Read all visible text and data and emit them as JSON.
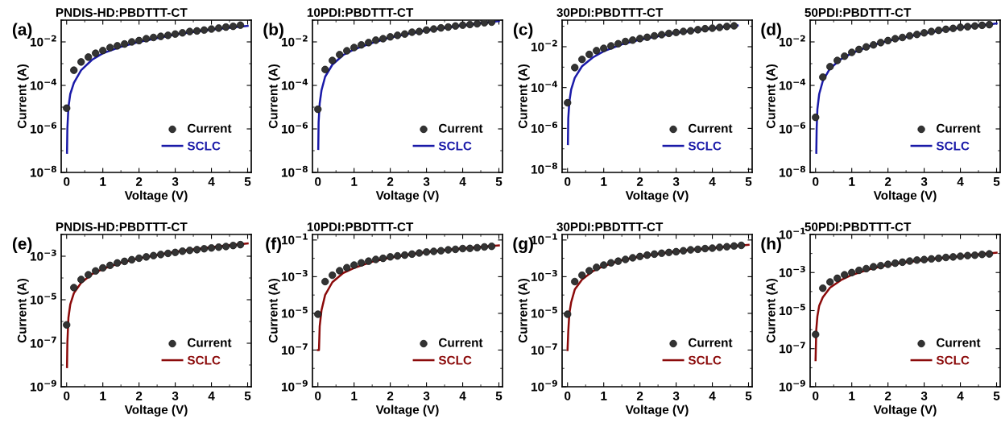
{
  "chart_data": [
    {
      "type": "scatter",
      "title": "PNDIS-HD:PBDTTT-CT",
      "annotations": [
        "(a)"
      ],
      "xlabel": "Voltage (V)",
      "ylabel": "Current (A)",
      "log": "y",
      "legend": "bottom right",
      "xlim": [
        -0.15,
        5.1
      ],
      "xticks": [
        0,
        1,
        2,
        3,
        4,
        5
      ],
      "ylim": [
        1e-08,
        0.1
      ],
      "yticks": [
        {
          "value": 1e-08,
          "label": "10$^{−8}$"
        },
        {
          "value": 1e-06,
          "label": "10$^{−6}$"
        },
        {
          "value": 0.0001,
          "label": "10$^{−4}$"
        },
        {
          "value": 0.01,
          "label": "10$^{−2}$"
        }
      ],
      "series": [
        {
          "name": "Current",
          "marker": "circle",
          "color": "#333333",
          "x": [
            0,
            0.2,
            0.4,
            0.6,
            0.8,
            1.0,
            1.2,
            1.4,
            1.6,
            1.8,
            2.0,
            2.2,
            2.4,
            2.6,
            2.8,
            3.0,
            3.2,
            3.4,
            3.6,
            3.8,
            4.0,
            4.2,
            4.4,
            4.6,
            4.8
          ],
          "values": [
            9e-06,
            0.0005,
            0.0012,
            0.002,
            0.003,
            0.004,
            0.0055,
            0.0066,
            0.008,
            0.01,
            0.0115,
            0.014,
            0.016,
            0.018,
            0.02,
            0.023,
            0.026,
            0.03,
            0.032,
            0.035,
            0.039,
            0.043,
            0.048,
            0.052,
            0.059
          ]
        },
        {
          "name": "SCLC",
          "type": "line",
          "color": "#1a1aa8",
          "x": [
            0.01,
            0.02,
            0.05,
            0.1,
            0.2,
            0.4,
            0.7,
            1.0,
            1.5,
            2.0,
            3.0,
            4.0,
            5.0
          ],
          "values": [
            8e-08,
            1e-06,
            1e-05,
            4e-05,
            0.00013,
            0.0005,
            0.0015,
            0.003,
            0.006,
            0.01,
            0.022,
            0.037,
            0.055
          ]
        }
      ]
    },
    {
      "type": "scatter",
      "title": "10PDI:PBDTTT-CT",
      "annotations": [
        "(b)"
      ],
      "xlabel": "Voltage (V)",
      "ylabel": "Current (A)",
      "log": "y",
      "legend": "bottom right",
      "xlim": [
        -0.15,
        5.1
      ],
      "xticks": [
        0,
        1,
        2,
        3,
        4,
        5
      ],
      "ylim": [
        1e-08,
        0.1
      ],
      "yticks": [
        {
          "value": 1e-08,
          "label": "10$^{−8}$"
        },
        {
          "value": 1e-06,
          "label": "10$^{−6}$"
        },
        {
          "value": 0.0001,
          "label": "10$^{−4}$"
        },
        {
          "value": 0.01,
          "label": "10$^{−2}$"
        }
      ],
      "series": [
        {
          "name": "Current",
          "marker": "circle",
          "color": "#333333",
          "x": [
            0,
            0.2,
            0.4,
            0.6,
            0.8,
            1.0,
            1.2,
            1.4,
            1.6,
            1.8,
            2.0,
            2.2,
            2.4,
            2.6,
            2.8,
            3.0,
            3.2,
            3.4,
            3.6,
            3.8,
            4.0,
            4.2,
            4.4,
            4.6,
            4.8
          ],
          "values": [
            8e-06,
            0.00054,
            0.0014,
            0.0026,
            0.0039,
            0.0055,
            0.0073,
            0.0093,
            0.012,
            0.014,
            0.017,
            0.02,
            0.023,
            0.028,
            0.03,
            0.035,
            0.039,
            0.044,
            0.048,
            0.054,
            0.059,
            0.063,
            0.068,
            0.076,
            0.081
          ]
        },
        {
          "name": "SCLC",
          "type": "line",
          "color": "#1a1aa8",
          "x": [
            0.01,
            0.02,
            0.05,
            0.1,
            0.2,
            0.4,
            0.7,
            1.0,
            1.5,
            2.0,
            3.0,
            4.0,
            5.0
          ],
          "values": [
            1.2e-07,
            2e-06,
            1.5e-05,
            6e-05,
            0.00025,
            0.0009,
            0.0025,
            0.0045,
            0.009,
            0.016,
            0.034,
            0.058,
            0.09
          ]
        }
      ]
    },
    {
      "type": "scatter",
      "title": "30PDI:PBDTTT-CT",
      "annotations": [
        "(c)"
      ],
      "xlabel": "Voltage (V)",
      "ylabel": "Current (A)",
      "log": "y",
      "legend": "bottom right",
      "xlim": [
        -0.15,
        5.1
      ],
      "xticks": [
        0,
        1,
        2,
        3,
        4,
        5
      ],
      "ylim": [
        7e-09,
        0.2
      ],
      "yticks": [
        {
          "value": 1e-08,
          "label": "10$^{−8}$"
        },
        {
          "value": 1e-06,
          "label": "10$^{−6}$"
        },
        {
          "value": 0.0001,
          "label": "10$^{−4}$"
        },
        {
          "value": 0.01,
          "label": "10$^{−2}$"
        }
      ],
      "series": [
        {
          "name": "Current",
          "marker": "circle",
          "color": "#333333",
          "x": [
            0,
            0.2,
            0.4,
            0.6,
            0.8,
            1.0,
            1.2,
            1.4,
            1.6,
            1.8,
            2.0,
            2.2,
            2.4,
            2.6,
            2.8,
            3.0,
            3.2,
            3.4,
            3.6,
            3.8,
            4.0,
            4.2,
            4.4,
            4.6
          ],
          "values": [
            1.8e-05,
            0.00095,
            0.0024,
            0.0042,
            0.0064,
            0.0083,
            0.011,
            0.014,
            0.018,
            0.021,
            0.025,
            0.029,
            0.034,
            0.039,
            0.045,
            0.05,
            0.056,
            0.06,
            0.068,
            0.076,
            0.081,
            0.088,
            0.098,
            0.105
          ]
        },
        {
          "name": "SCLC",
          "type": "line",
          "color": "#1a1aa8",
          "x": [
            0.01,
            0.02,
            0.05,
            0.1,
            0.2,
            0.4,
            0.7,
            1.0,
            1.5,
            2.0,
            3.0,
            4.0,
            4.7
          ],
          "values": [
            1.7e-07,
            3e-06,
            2e-05,
            8e-05,
            0.0003,
            0.0011,
            0.003,
            0.006,
            0.013,
            0.022,
            0.048,
            0.08,
            0.11
          ]
        }
      ]
    },
    {
      "type": "scatter",
      "title": "50PDI:PBDTTT-CT",
      "annotations": [
        "(d)"
      ],
      "xlabel": "Voltage (V)",
      "ylabel": "Current (A)",
      "log": "y",
      "legend": "bottom right",
      "xlim": [
        -0.15,
        5.1
      ],
      "xticks": [
        0,
        1,
        2,
        3,
        4,
        5
      ],
      "ylim": [
        1e-08,
        0.1
      ],
      "yticks": [
        {
          "value": 1e-08,
          "label": "10$^{−8}$"
        },
        {
          "value": 1e-06,
          "label": "10$^{−6}$"
        },
        {
          "value": 0.0001,
          "label": "10$^{−4}$"
        },
        {
          "value": 0.01,
          "label": "10$^{−2}$"
        }
      ],
      "series": [
        {
          "name": "Current",
          "marker": "circle",
          "color": "#333333",
          "x": [
            0,
            0.2,
            0.4,
            0.6,
            0.8,
            1.0,
            1.2,
            1.4,
            1.6,
            1.8,
            2.0,
            2.2,
            2.4,
            2.6,
            2.8,
            3.0,
            3.2,
            3.4,
            3.6,
            3.8,
            4.0,
            4.2,
            4.4,
            4.6,
            4.8
          ],
          "values": [
            3.4e-06,
            0.00024,
            0.00073,
            0.0014,
            0.0022,
            0.0033,
            0.0045,
            0.0059,
            0.0073,
            0.0093,
            0.0115,
            0.014,
            0.016,
            0.019,
            0.022,
            0.026,
            0.03,
            0.034,
            0.038,
            0.042,
            0.047,
            0.05,
            0.054,
            0.058,
            0.062
          ]
        },
        {
          "name": "SCLC",
          "type": "line",
          "color": "#1a1aa8",
          "x": [
            0.02,
            0.03,
            0.05,
            0.1,
            0.2,
            0.4,
            0.7,
            1.0,
            1.5,
            2.0,
            3.0,
            4.0,
            5.0
          ],
          "values": [
            8e-08,
            1e-06,
            8e-06,
            4e-05,
            0.00016,
            0.0006,
            0.0016,
            0.003,
            0.0065,
            0.011,
            0.025,
            0.045,
            0.07
          ]
        }
      ]
    },
    {
      "type": "scatter",
      "title": "PNDIS-HD:PBDTTT-CT",
      "annotations": [
        "(e)"
      ],
      "xlabel": "Voltage (V)",
      "ylabel": "Current (A)",
      "log": "y",
      "legend": "bottom right",
      "xlim": [
        -0.15,
        5.1
      ],
      "xticks": [
        0,
        1,
        2,
        3,
        4,
        5
      ],
      "ylim": [
        1e-09,
        0.01
      ],
      "yticks": [
        {
          "value": 1e-09,
          "label": "10$^{−9}$"
        },
        {
          "value": 1e-07,
          "label": "10$^{−7}$"
        },
        {
          "value": 1e-05,
          "label": "10$^{−5}$"
        },
        {
          "value": 0.001,
          "label": "10$^{−3}$"
        }
      ],
      "series": [
        {
          "name": "Current",
          "marker": "circle",
          "color": "#333333",
          "x": [
            0,
            0.2,
            0.4,
            0.6,
            0.8,
            1.0,
            1.2,
            1.4,
            1.6,
            1.8,
            2.0,
            2.2,
            2.4,
            2.6,
            2.8,
            3.0,
            3.2,
            3.4,
            3.6,
            3.8,
            4.0,
            4.2,
            4.4,
            4.6,
            4.8
          ],
          "values": [
            7e-07,
            3.6e-05,
            8.5e-05,
            0.00014,
            0.00021,
            0.00029,
            0.00038,
            0.00049,
            0.00058,
            0.00069,
            0.00081,
            0.00093,
            0.00107,
            0.0012,
            0.00135,
            0.0015,
            0.0017,
            0.00185,
            0.002,
            0.0022,
            0.0024,
            0.0026,
            0.0028,
            0.0031,
            0.0034
          ]
        },
        {
          "name": "SCLC",
          "type": "line",
          "color": "#8b0a0a",
          "x": [
            0.01,
            0.02,
            0.05,
            0.1,
            0.2,
            0.4,
            0.7,
            1.0,
            1.5,
            2.0,
            3.0,
            4.0,
            5.0
          ],
          "values": [
            8e-09,
            1e-07,
            1.5e-06,
            6e-06,
            2e-05,
            6e-05,
            0.00015,
            0.00026,
            0.0005,
            0.0008,
            0.0016,
            0.0026,
            0.0039
          ]
        }
      ]
    },
    {
      "type": "scatter",
      "title": "10PDI:PBDTTT-CT",
      "annotations": [
        "(f)"
      ],
      "xlabel": "Voltage (V)",
      "ylabel": "Current (A)",
      "log": "y",
      "legend": "bottom right",
      "xlim": [
        -0.15,
        5.1
      ],
      "xticks": [
        0,
        1,
        2,
        3,
        4,
        5
      ],
      "ylim": [
        1e-09,
        0.2
      ],
      "yticks": [
        {
          "value": 1e-09,
          "label": "10$^{−9}$"
        },
        {
          "value": 1e-07,
          "label": "10$^{−7}$"
        },
        {
          "value": 1e-05,
          "label": "10$^{−5}$"
        },
        {
          "value": 0.001,
          "label": "10$^{−3}$"
        },
        {
          "value": 0.1,
          "label": "10$^{−1}$"
        }
      ],
      "series": [
        {
          "name": "Current",
          "marker": "circle",
          "color": "#333333",
          "x": [
            0,
            0.2,
            0.4,
            0.6,
            0.8,
            1.0,
            1.2,
            1.4,
            1.6,
            1.8,
            2.0,
            2.2,
            2.4,
            2.6,
            2.8,
            3.0,
            3.2,
            3.4,
            3.6,
            3.8,
            4.0,
            4.2,
            4.4,
            4.6,
            4.8
          ],
          "values": [
            9e-06,
            0.00054,
            0.0012,
            0.0021,
            0.0031,
            0.0043,
            0.0057,
            0.007,
            0.0087,
            0.01,
            0.012,
            0.0135,
            0.015,
            0.017,
            0.0195,
            0.022,
            0.024,
            0.026,
            0.029,
            0.031,
            0.034,
            0.035,
            0.038,
            0.042,
            0.045
          ]
        },
        {
          "name": "SCLC",
          "type": "line",
          "color": "#8b0a0a",
          "x": [
            0.0,
            0.03,
            0.05,
            0.1,
            0.2,
            0.4,
            0.7,
            1.0,
            1.5,
            2.0,
            3.0,
            4.0,
            5.0
          ],
          "values": [
            1e-07,
            1e-07,
            2e-06,
            1.5e-05,
            0.0001,
            0.0005,
            0.0016,
            0.003,
            0.0065,
            0.011,
            0.022,
            0.035,
            0.05
          ]
        }
      ]
    },
    {
      "type": "scatter",
      "title": "30PDI:PBDTTT-CT",
      "annotations": [
        "(g)"
      ],
      "xlabel": "Voltage (V)",
      "ylabel": "Current (A)",
      "log": "y",
      "legend": "bottom right",
      "xlim": [
        -0.15,
        5.1
      ],
      "xticks": [
        0,
        1,
        2,
        3,
        4,
        5
      ],
      "ylim": [
        1e-09,
        0.2
      ],
      "yticks": [
        {
          "value": 1e-09,
          "label": "10$^{−9}$"
        },
        {
          "value": 1e-07,
          "label": "10$^{−7}$"
        },
        {
          "value": 1e-05,
          "label": "10$^{−5}$"
        },
        {
          "value": 0.001,
          "label": "10$^{−3}$"
        },
        {
          "value": 0.1,
          "label": "10$^{−1}$"
        }
      ],
      "series": [
        {
          "name": "Current",
          "marker": "circle",
          "color": "#333333",
          "x": [
            0,
            0.2,
            0.4,
            0.6,
            0.8,
            1.0,
            1.2,
            1.4,
            1.6,
            1.8,
            2.0,
            2.2,
            2.4,
            2.6,
            2.8,
            3.0,
            3.2,
            3.4,
            3.6,
            3.8,
            4.0,
            4.2,
            4.4,
            4.6,
            4.8
          ],
          "values": [
            9e-06,
            0.00054,
            0.0012,
            0.0021,
            0.0032,
            0.0043,
            0.0057,
            0.007,
            0.0087,
            0.0107,
            0.0126,
            0.015,
            0.017,
            0.019,
            0.021,
            0.023,
            0.026,
            0.029,
            0.031,
            0.034,
            0.036,
            0.04,
            0.043,
            0.047,
            0.051
          ]
        },
        {
          "name": "SCLC",
          "type": "line",
          "color": "#8b0a0a",
          "x": [
            0.0,
            0.02,
            0.05,
            0.1,
            0.2,
            0.4,
            0.7,
            1.0,
            1.5,
            2.0,
            3.0,
            4.0,
            5.0
          ],
          "values": [
            1e-07,
            1e-06,
            1e-05,
            4e-05,
            0.0002,
            0.0007,
            0.002,
            0.0038,
            0.008,
            0.0125,
            0.024,
            0.037,
            0.055
          ]
        }
      ]
    },
    {
      "type": "scatter",
      "title": "50PDI:PBDTTT-CT",
      "annotations": [
        "(h)"
      ],
      "xlabel": "Voltage (V)",
      "ylabel": "Current (A)",
      "log": "y",
      "legend": "bottom right",
      "xlim": [
        -0.15,
        5.1
      ],
      "xticks": [
        0,
        1,
        2,
        3,
        4,
        5
      ],
      "ylim": [
        1e-09,
        0.1
      ],
      "yticks": [
        {
          "value": 1e-09,
          "label": "10$^{−9}$"
        },
        {
          "value": 1e-07,
          "label": "10$^{−7}$"
        },
        {
          "value": 1e-05,
          "label": "10$^{−5}$"
        },
        {
          "value": 0.001,
          "label": "10$^{−3}$"
        },
        {
          "value": 0.1,
          "label": "10$^{−1}$"
        }
      ],
      "series": [
        {
          "name": "Current",
          "marker": "circle",
          "color": "#333333",
          "x": [
            0,
            0.2,
            0.4,
            0.6,
            0.8,
            1.0,
            1.2,
            1.4,
            1.6,
            1.8,
            2.0,
            2.2,
            2.4,
            2.6,
            2.8,
            3.0,
            3.2,
            3.4,
            3.6,
            3.8,
            4.0,
            4.2,
            4.4,
            4.6,
            4.8
          ],
          "values": [
            5.6e-07,
            0.00015,
            0.00032,
            0.0005,
            0.00076,
            0.001,
            0.0013,
            0.0016,
            0.002,
            0.0023,
            0.0027,
            0.0031,
            0.0035,
            0.004,
            0.0045,
            0.0048,
            0.0052,
            0.0056,
            0.0062,
            0.0066,
            0.0072,
            0.0078,
            0.0081,
            0.0089,
            0.0095
          ]
        },
        {
          "name": "SCLC",
          "type": "line",
          "color": "#8b0a0a",
          "x": [
            0.0,
            0.02,
            0.05,
            0.1,
            0.2,
            0.4,
            0.7,
            1.0,
            1.5,
            2.0,
            3.0,
            4.0,
            5.0
          ],
          "values": [
            2.5e-08,
            1e-06,
            5e-06,
            1.8e-05,
            5e-05,
            0.00016,
            0.0004,
            0.00075,
            0.0015,
            0.0025,
            0.0046,
            0.0072,
            0.011
          ]
        }
      ]
    }
  ]
}
